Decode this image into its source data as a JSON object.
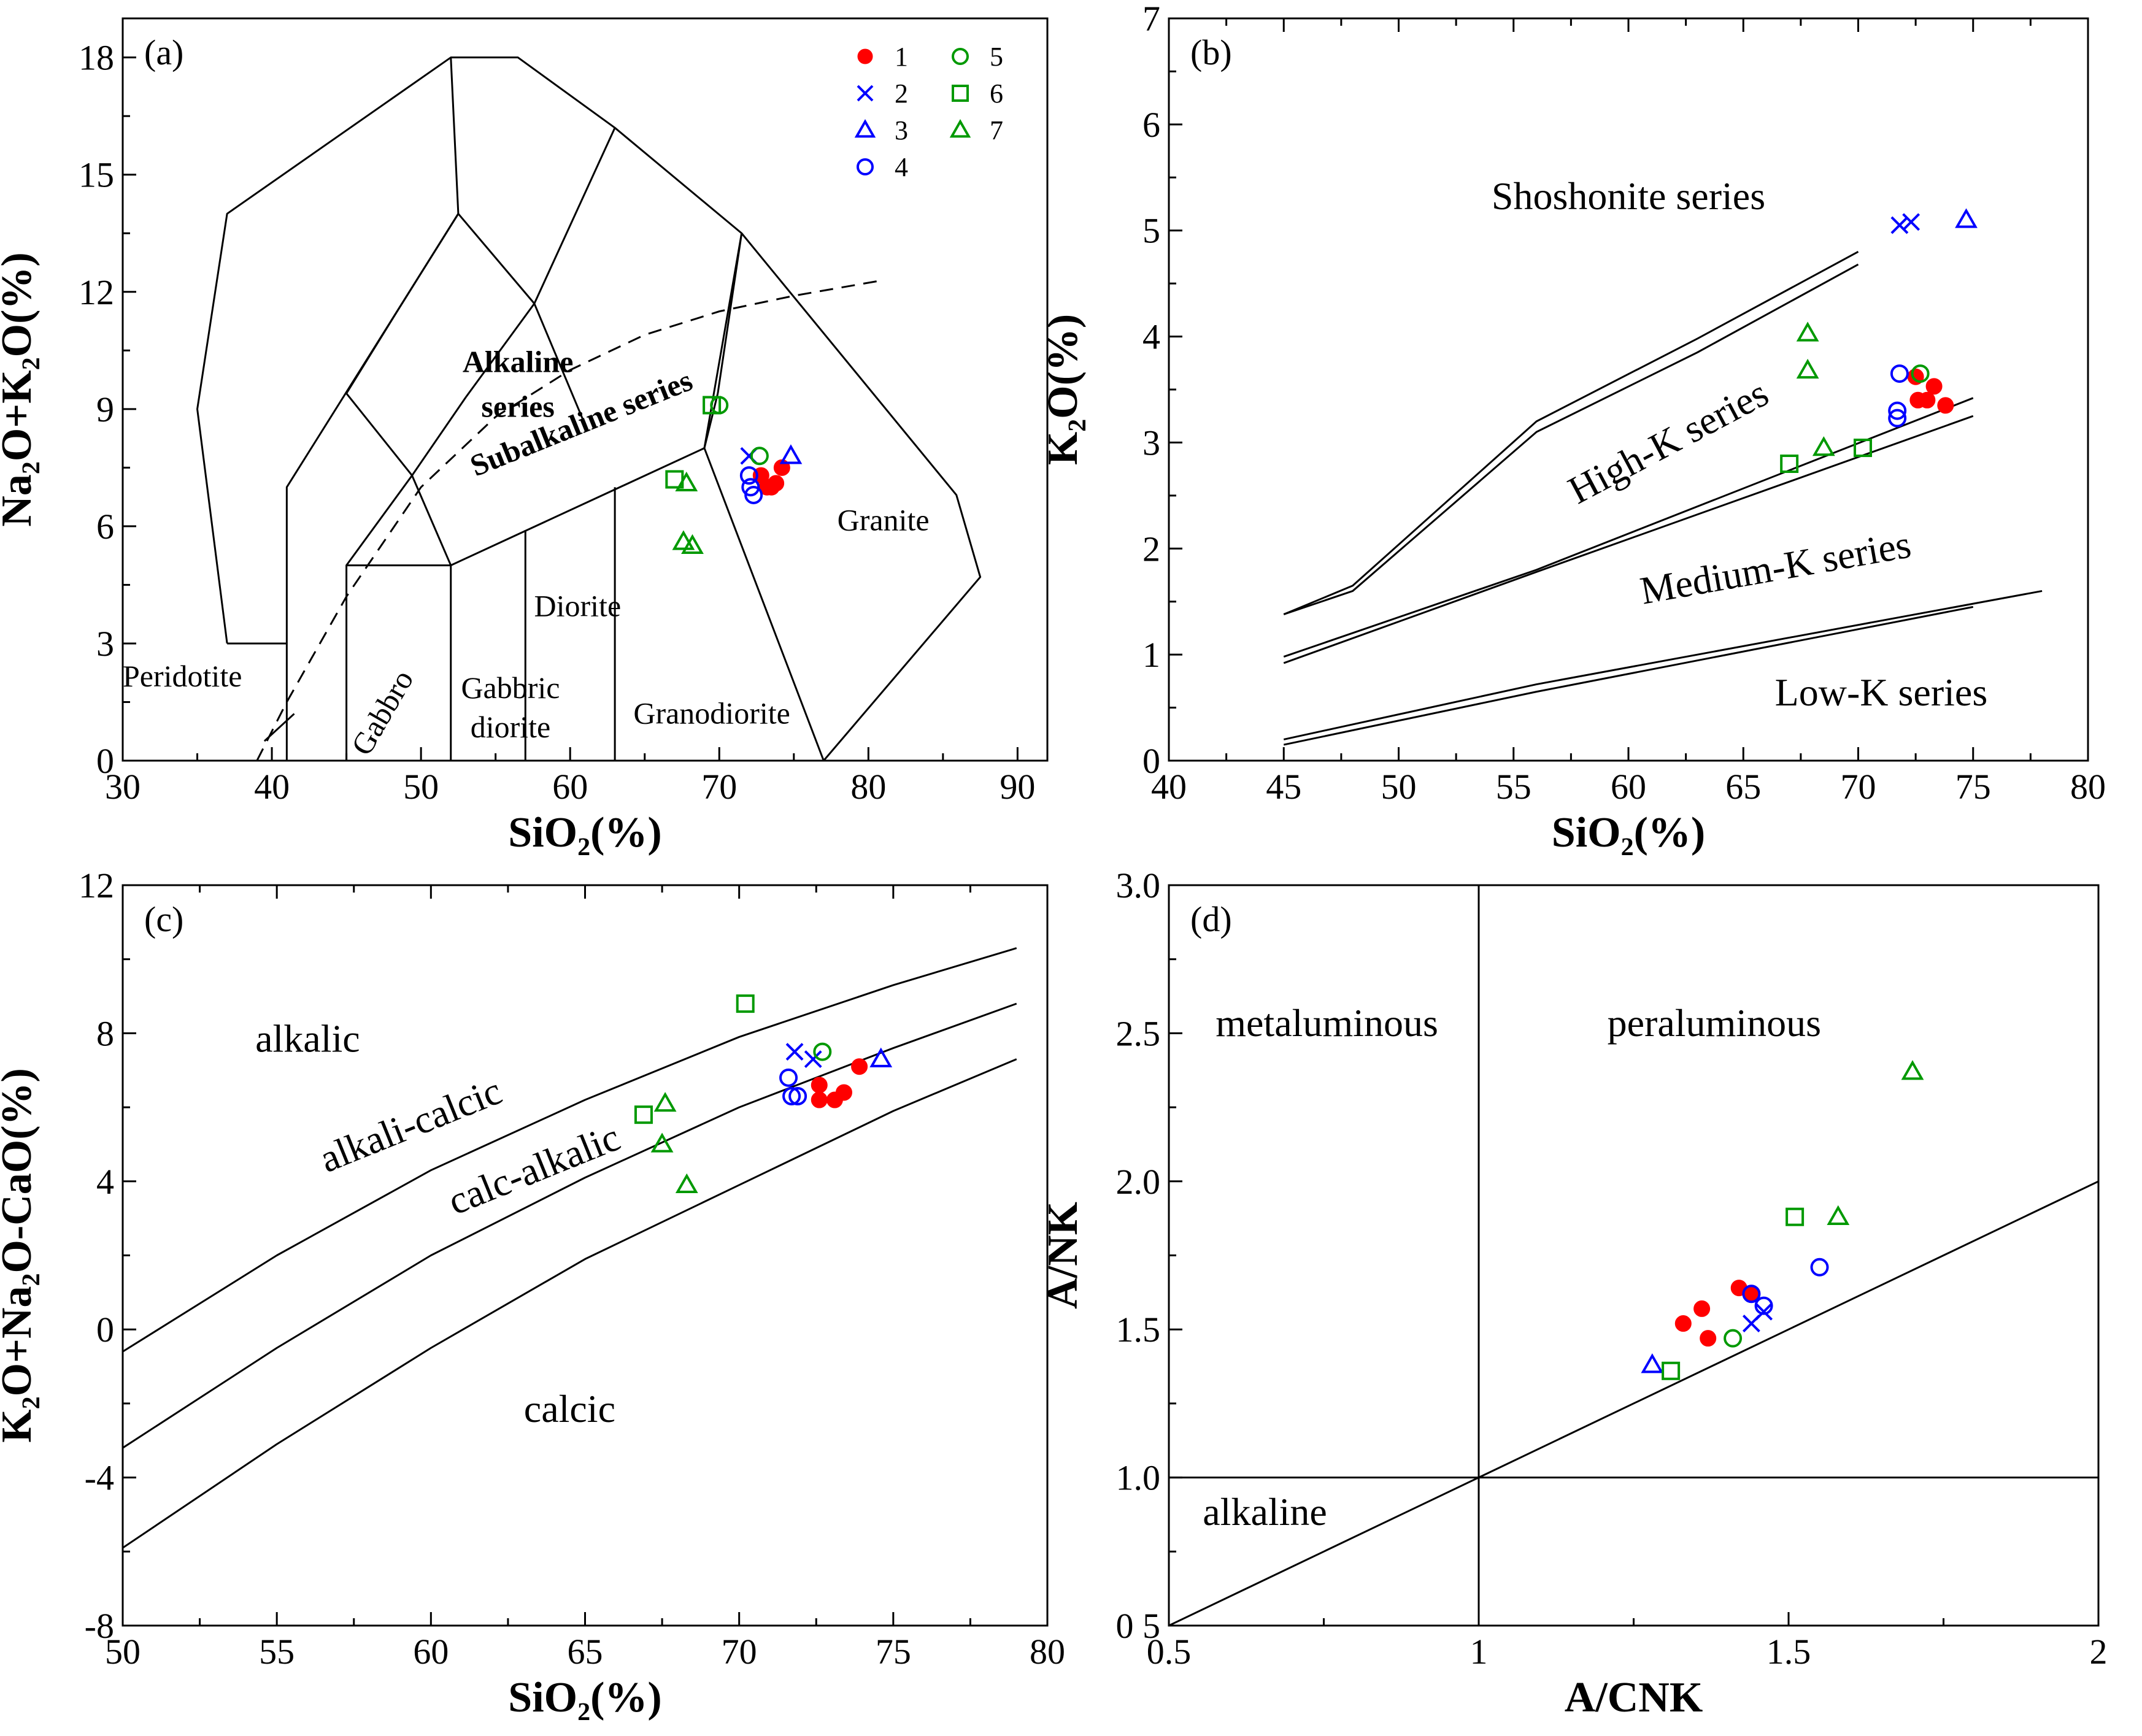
{
  "colors": {
    "1": "#ff0000",
    "2": "#0000ff",
    "3": "#0000ff",
    "4": "#0000ff",
    "5": "#009900",
    "6": "#009900",
    "7": "#009900"
  },
  "symbols": {
    "1": "filled-circle",
    "2": "cross",
    "3": "triangle",
    "4": "circle",
    "5": "circle",
    "6": "square",
    "7": "triangle"
  },
  "chart_data": [
    {
      "id": "a",
      "type": "scatter",
      "panel_label": "(a)",
      "xlabel": "SiO₂(%)",
      "ylabel": "Na₂O+K₂O(%)",
      "xlim": [
        30,
        92
      ],
      "ylim": [
        0,
        19
      ],
      "xticks": [
        30,
        40,
        50,
        60,
        70,
        80,
        90
      ],
      "yticks": [
        0,
        3,
        6,
        9,
        12,
        15,
        18
      ],
      "legend": {
        "position": "top-right",
        "entries": [
          "1",
          "2",
          "3",
          "4",
          "5",
          "6",
          "7"
        ]
      },
      "field_lines": [
        [
          [
            37,
            3
          ],
          [
            35,
            9
          ],
          [
            37,
            14
          ],
          [
            52,
            18
          ],
          [
            56.5,
            18
          ],
          [
            63,
            16.2
          ],
          [
            71.5,
            13.5
          ],
          [
            85.9,
            6.8
          ],
          [
            87.5,
            4.7
          ],
          [
            77,
            0
          ]
        ],
        [
          [
            37,
            3
          ],
          [
            41,
            3
          ]
        ],
        [
          [
            45,
            0
          ],
          [
            45,
            5
          ],
          [
            52,
            5
          ],
          [
            69,
            8
          ],
          [
            71.5,
            13.5
          ]
        ],
        [
          [
            52,
            0
          ],
          [
            52,
            5
          ]
        ],
        [
          [
            57,
            0
          ],
          [
            57,
            5.9
          ]
        ],
        [
          [
            63,
            0
          ],
          [
            63,
            7
          ]
        ],
        [
          [
            77,
            0
          ],
          [
            69,
            8
          ]
        ],
        [
          [
            41,
            0
          ],
          [
            41,
            7
          ],
          [
            52.5,
            14
          ],
          [
            57.6,
            11.7
          ],
          [
            63,
            16.2
          ]
        ],
        [
          [
            52.5,
            14
          ],
          [
            52,
            18
          ]
        ],
        [
          [
            57.6,
            11.7
          ],
          [
            61,
            8.6
          ]
        ],
        [
          [
            45,
            9.4
          ],
          [
            48.4,
            11.5
          ],
          [
            52.5,
            14
          ]
        ],
        [
          [
            45,
            9.4
          ],
          [
            49.4,
            7.3
          ],
          [
            53,
            9.3
          ],
          [
            57.6,
            11.7
          ]
        ],
        [
          [
            49.4,
            7.3
          ],
          [
            52,
            5
          ]
        ],
        [
          [
            45,
            5
          ],
          [
            49.4,
            7.3
          ]
        ],
        [
          [
            69,
            8
          ],
          [
            69.9,
            9.4
          ]
        ],
        [
          [
            69.9,
            9.4
          ],
          [
            71.5,
            13.5
          ]
        ],
        [
          [
            39.5,
            0.5
          ],
          [
            41.5,
            1.2
          ]
        ]
      ],
      "dashed_line": [
        [
          39,
          0
        ],
        [
          41,
          1.5
        ],
        [
          45,
          4.2
        ],
        [
          50,
          7
        ],
        [
          55,
          8.8
        ],
        [
          60,
          10
        ],
        [
          65,
          10.9
        ],
        [
          70,
          11.5
        ],
        [
          75,
          11.9
        ],
        [
          81,
          12.3
        ]
      ],
      "labels": [
        {
          "text": "Alkaline",
          "x": 56.5,
          "y": 9.95,
          "bold": true
        },
        {
          "text": "series",
          "x": 56.5,
          "y": 8.8,
          "bold": true
        },
        {
          "text": "Subalkaline series",
          "x": 61,
          "y": 8.4,
          "bold": true,
          "rotate": -22
        },
        {
          "text": "Granite",
          "x": 81,
          "y": 5.9
        },
        {
          "text": "Diorite",
          "x": 60.5,
          "y": 3.7
        },
        {
          "text": "Gabbric",
          "x": 56,
          "y": 1.6
        },
        {
          "text": "diorite",
          "x": 56,
          "y": 0.6
        },
        {
          "text": "Gabbro",
          "x": 48,
          "y": 1.1,
          "rotate": -60
        },
        {
          "text": "Peridotite",
          "x": 34,
          "y": 1.9
        },
        {
          "text": "Granodiorite",
          "x": 69.5,
          "y": 0.95
        }
      ],
      "series": [
        {
          "name": "1",
          "points": [
            [
              72.8,
              7.3
            ],
            [
              73.2,
              7.0
            ],
            [
              73.5,
              7.0
            ],
            [
              73.8,
              7.1
            ],
            [
              74.2,
              7.5
            ]
          ]
        },
        {
          "name": "2",
          "points": [
            [
              72.0,
              7.8
            ]
          ]
        },
        {
          "name": "3",
          "points": [
            [
              74.8,
              7.8
            ]
          ]
        },
        {
          "name": "4",
          "points": [
            [
              72.0,
              7.3
            ],
            [
              72.1,
              7.0
            ],
            [
              72.3,
              6.8
            ]
          ]
        },
        {
          "name": "5",
          "points": [
            [
              70.0,
              9.1
            ],
            [
              72.7,
              7.8
            ]
          ]
        },
        {
          "name": "6",
          "points": [
            [
              67.0,
              7.2
            ],
            [
              69.5,
              9.1
            ]
          ]
        },
        {
          "name": "7",
          "points": [
            [
              67.8,
              7.1
            ],
            [
              67.6,
              5.6
            ],
            [
              68.2,
              5.5
            ]
          ]
        }
      ]
    },
    {
      "id": "b",
      "type": "scatter",
      "panel_label": "(b)",
      "xlabel": "SiO₂(%)",
      "ylabel": "K₂O(%)",
      "xlim": [
        40,
        80
      ],
      "ylim": [
        0,
        7
      ],
      "xticks": [
        40,
        45,
        50,
        55,
        60,
        65,
        70,
        75,
        80
      ],
      "yticks": [
        0,
        1,
        2,
        3,
        4,
        5,
        6,
        7
      ],
      "field_lines": [
        [
          [
            45,
            1.38
          ],
          [
            48,
            1.65
          ],
          [
            56,
            3.2
          ],
          [
            63,
            3.98
          ],
          [
            70,
            4.8
          ]
        ],
        [
          [
            45,
            1.38
          ],
          [
            48,
            1.6
          ],
          [
            56,
            3.1
          ],
          [
            63,
            3.85
          ],
          [
            70,
            4.68
          ]
        ],
        [
          [
            45,
            0.98
          ],
          [
            56,
            1.8
          ],
          [
            75,
            3.42
          ]
        ],
        [
          [
            45,
            0.92
          ],
          [
            56,
            1.78
          ],
          [
            75,
            3.25
          ]
        ],
        [
          [
            45,
            0.2
          ],
          [
            56,
            0.72
          ],
          [
            78,
            1.6
          ]
        ],
        [
          [
            45,
            0.15
          ],
          [
            56,
            0.65
          ],
          [
            75,
            1.45
          ]
        ]
      ],
      "labels": [
        {
          "text": "Shoshonite series",
          "x": 60,
          "y": 5.2
        },
        {
          "text": "High-K series",
          "x": 62,
          "y": 2.9,
          "rotate": -28
        },
        {
          "text": "Medium-K series",
          "x": 66.5,
          "y": 1.7,
          "rotate": -10
        },
        {
          "text": "Low-K series",
          "x": 71,
          "y": 0.52
        }
      ],
      "series": [
        {
          "name": "1",
          "points": [
            [
              72.5,
              3.62
            ],
            [
              72.6,
              3.4
            ],
            [
              73.0,
              3.4
            ],
            [
              73.3,
              3.53
            ],
            [
              73.8,
              3.35
            ]
          ]
        },
        {
          "name": "2",
          "points": [
            [
              71.8,
              5.05
            ],
            [
              72.3,
              5.08
            ]
          ]
        },
        {
          "name": "3",
          "points": [
            [
              74.7,
              5.1
            ]
          ]
        },
        {
          "name": "4",
          "points": [
            [
              71.8,
              3.65
            ],
            [
              71.7,
              3.3
            ],
            [
              71.7,
              3.23
            ]
          ]
        },
        {
          "name": "5",
          "points": [
            [
              72.7,
              3.65
            ]
          ]
        },
        {
          "name": "6",
          "points": [
            [
              67.0,
              2.8
            ],
            [
              70.2,
              2.95
            ]
          ]
        },
        {
          "name": "7",
          "points": [
            [
              67.8,
              4.03
            ],
            [
              67.8,
              3.68
            ],
            [
              68.5,
              2.95
            ]
          ]
        }
      ]
    },
    {
      "id": "c",
      "type": "scatter",
      "panel_label": "(c)",
      "xlabel": "SiO₂(%)",
      "ylabel": "K₂O+Na₂O-CaO(%)",
      "xlim": [
        50,
        80
      ],
      "ylim": [
        -8,
        12
      ],
      "xticks": [
        50,
        55,
        60,
        65,
        70,
        75,
        80
      ],
      "yticks": [
        -8,
        -4,
        0,
        4,
        8,
        12
      ],
      "field_lines": [
        [
          [
            50,
            -0.6
          ],
          [
            55,
            2.0
          ],
          [
            60,
            4.3
          ],
          [
            65,
            6.2
          ],
          [
            70,
            7.9
          ],
          [
            75,
            9.3
          ],
          [
            79,
            10.3
          ]
        ],
        [
          [
            50,
            -3.2
          ],
          [
            55,
            -0.5
          ],
          [
            60,
            2.0
          ],
          [
            65,
            4.1
          ],
          [
            70,
            6.0
          ],
          [
            75,
            7.6
          ],
          [
            79,
            8.8
          ]
        ],
        [
          [
            50,
            -5.9
          ],
          [
            55,
            -3.1
          ],
          [
            60,
            -0.5
          ],
          [
            65,
            1.9
          ],
          [
            70,
            3.9
          ],
          [
            75,
            5.9
          ],
          [
            79,
            7.3
          ]
        ]
      ],
      "labels": [
        {
          "text": "alkalic",
          "x": 56,
          "y": 7.5
        },
        {
          "text": "alkali-calcic",
          "x": 59.5,
          "y": 5.2,
          "rotate": -22
        },
        {
          "text": "calc-alkalic",
          "x": 63.5,
          "y": 4.0,
          "rotate": -22
        },
        {
          "text": "calcic",
          "x": 64.5,
          "y": -2.5
        }
      ],
      "series": [
        {
          "name": "1",
          "points": [
            [
              72.6,
              6.2
            ],
            [
              72.6,
              6.6
            ],
            [
              73.1,
              6.2
            ],
            [
              73.4,
              6.4
            ],
            [
              73.9,
              7.1
            ]
          ]
        },
        {
          "name": "2",
          "points": [
            [
              71.8,
              7.5
            ],
            [
              72.4,
              7.3
            ]
          ]
        },
        {
          "name": "3",
          "points": [
            [
              74.6,
              7.3
            ]
          ]
        },
        {
          "name": "4",
          "points": [
            [
              71.6,
              6.8
            ],
            [
              71.7,
              6.3
            ],
            [
              71.9,
              6.3
            ]
          ]
        },
        {
          "name": "5",
          "points": [
            [
              72.7,
              7.5
            ]
          ]
        },
        {
          "name": "6",
          "points": [
            [
              70.2,
              8.8
            ],
            [
              66.9,
              5.8
            ]
          ]
        },
        {
          "name": "7",
          "points": [
            [
              67.6,
              6.1
            ],
            [
              67.5,
              5.0
            ],
            [
              68.3,
              3.9
            ]
          ]
        }
      ]
    },
    {
      "id": "d",
      "type": "scatter",
      "panel_label": "(d)",
      "xlabel": "A/CNK",
      "ylabel": "A/NK",
      "xlim": [
        0.5,
        2.0
      ],
      "ylim": [
        0.5,
        3.0
      ],
      "xticks": [
        0.5,
        1.0,
        1.5,
        2.0
      ],
      "ytick_values": [
        0.5,
        1.0,
        1.5,
        2.0,
        2.5,
        3.0
      ],
      "yticks": [
        "0 5",
        "1.0",
        "1.5",
        "2.0",
        "2.5",
        "3.0"
      ],
      "field_lines": [
        [
          [
            1.0,
            0.5
          ],
          [
            1.0,
            3.0
          ]
        ],
        [
          [
            0.5,
            1.0
          ],
          [
            2.0,
            1.0
          ]
        ],
        [
          [
            0.5,
            0.5
          ],
          [
            2.0,
            2.0
          ]
        ]
      ],
      "labels": [
        {
          "text": "metaluminous",
          "x": 0.755,
          "y": 2.49
        },
        {
          "text": "peraluminous",
          "x": 1.38,
          "y": 2.49
        },
        {
          "text": "alkaline",
          "x": 0.655,
          "y": 0.84
        }
      ],
      "series": [
        {
          "name": "1",
          "points": [
            [
              1.33,
              1.52
            ],
            [
              1.36,
              1.57
            ],
            [
              1.37,
              1.47
            ],
            [
              1.42,
              1.64
            ],
            [
              1.44,
              1.62
            ]
          ]
        },
        {
          "name": "2",
          "points": [
            [
              1.44,
              1.52
            ],
            [
              1.46,
              1.56
            ]
          ]
        },
        {
          "name": "3",
          "points": [
            [
              1.28,
              1.38
            ]
          ]
        },
        {
          "name": "4",
          "points": [
            [
              1.44,
              1.62
            ],
            [
              1.46,
              1.58
            ],
            [
              1.55,
              1.71
            ]
          ]
        },
        {
          "name": "5",
          "points": [
            [
              1.41,
              1.47
            ]
          ]
        },
        {
          "name": "6",
          "points": [
            [
              1.31,
              1.36
            ],
            [
              1.51,
              1.88
            ]
          ]
        },
        {
          "name": "7",
          "points": [
            [
              1.58,
              1.88
            ],
            [
              1.7,
              2.37
            ]
          ]
        }
      ]
    }
  ]
}
